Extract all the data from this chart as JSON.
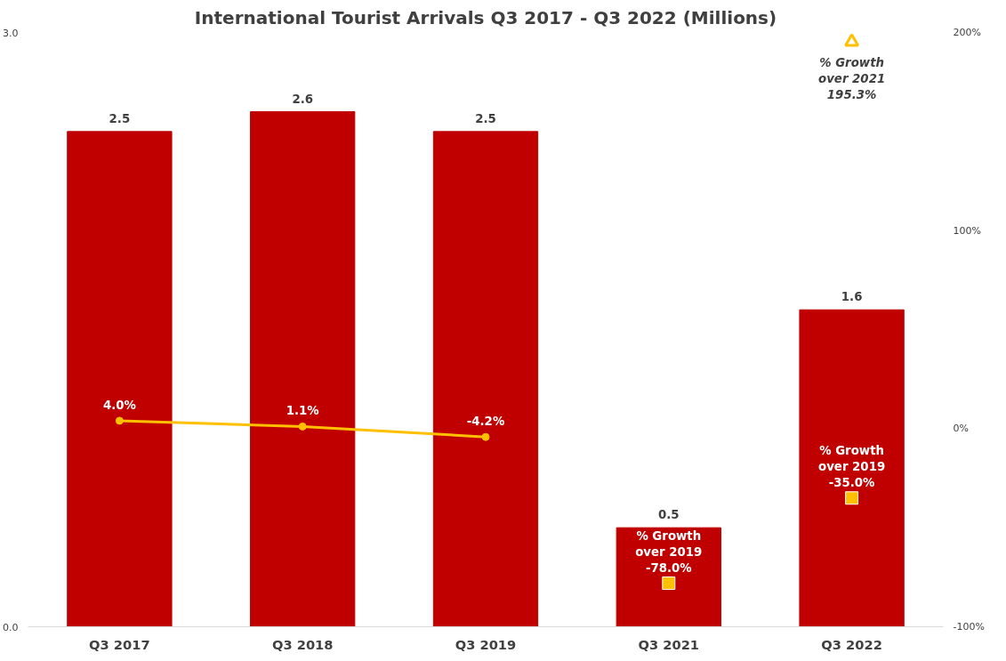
{
  "chart_data": {
    "type": "bar",
    "title": "International Tourist Arrivals Q3 2017 - Q3 2022 (Millions)",
    "categories": [
      "Q3 2017",
      "Q3 2018",
      "Q3 2019",
      "Q3 2021",
      "Q3 2022"
    ],
    "series": [
      {
        "color": "#c00000",
        "values": [
          2.5,
          2.6,
          2.5,
          0.5,
          1.6
        ],
        "data_labels": true
      },
      {
        "type": "line",
        "axis": "y2",
        "color": "#ffc000",
        "marker": "circle",
        "values": [
          4.0,
          1.1,
          -4.2,
          null,
          null
        ],
        "value_labels": [
          "4.0%",
          "1.1%",
          "-4.2%",
          null,
          null
        ]
      },
      {
        "type": "scatter",
        "axis": "y2",
        "color": "#ffc000",
        "marker": "square",
        "values": [
          null,
          null,
          null,
          -78.0,
          -35.0
        ],
        "value_labels": [
          null,
          null,
          null,
          "% Growth\nover 2019\n-78.0%",
          "% Growth\nover 2019\n-35.0%"
        ]
      },
      {
        "type": "scatter",
        "axis": "y2",
        "color": "#ffc000",
        "marker": "triangle",
        "values": [
          null,
          null,
          null,
          null,
          195.3
        ],
        "value_labels": [
          null,
          null,
          null,
          null,
          "% Growth\nover 2021\n195.3%"
        ]
      }
    ],
    "ylim": [
      0,
      3
    ],
    "yticks": [
      {
        "value": 0,
        "label": "0.0"
      },
      {
        "value": 3,
        "label": "3.0"
      }
    ],
    "y2lim": [
      -100,
      200
    ],
    "y2ticks": [
      {
        "value": -100,
        "label": "-100%"
      },
      {
        "value": 0,
        "label": "0%"
      },
      {
        "value": 100,
        "label": "100%"
      },
      {
        "value": 200,
        "label": "200%"
      }
    ],
    "grid": false
  }
}
